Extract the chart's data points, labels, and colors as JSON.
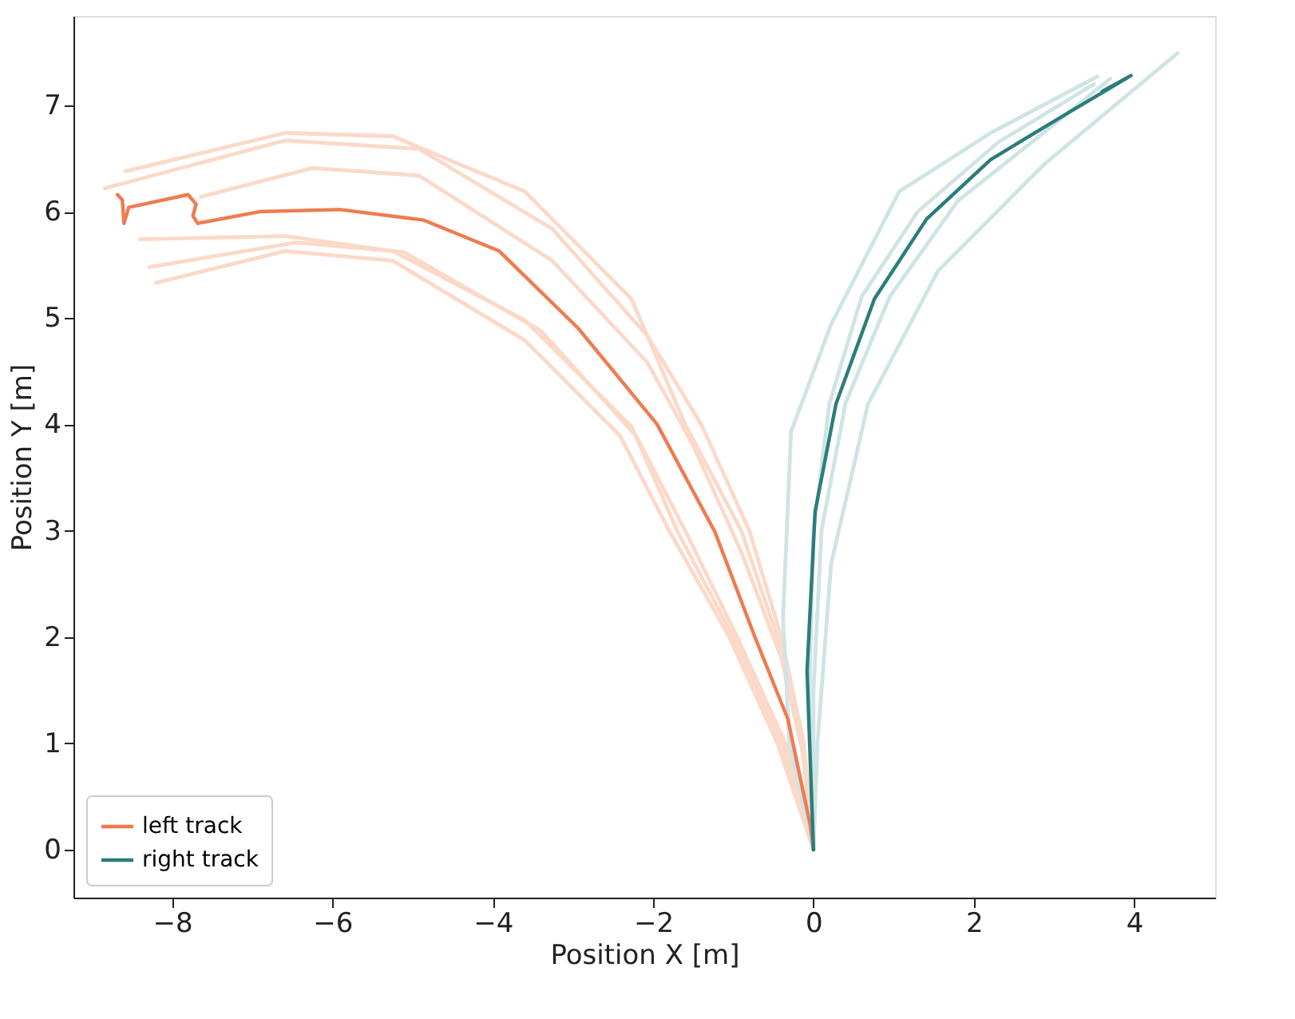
{
  "chart_data": {
    "type": "line",
    "xlabel": "Position X [m]",
    "ylabel": "Position Y [m]",
    "xlim": [
      -9.23,
      5.01
    ],
    "ylim": [
      -0.45,
      7.84
    ],
    "xticks": [
      -8,
      -6,
      -4,
      -2,
      0,
      2,
      4
    ],
    "yticks": [
      0,
      1,
      2,
      3,
      4,
      5,
      6,
      7
    ],
    "grid": false,
    "legend": "bottom left",
    "line_style": "solid",
    "series": [
      {
        "color": "#fbd9c9",
        "x": [
          0,
          -0.15,
          -0.45,
          -0.9,
          -1.6,
          -2.27,
          -3.6,
          -5.25,
          -6.59,
          -8.58
        ],
        "values": [
          0,
          1.0,
          2.0,
          3.0,
          4.0,
          5.18,
          6.19,
          6.71,
          6.74,
          6.38
        ]
      },
      {
        "color": "#fbd9c9",
        "x": [
          0,
          -0.12,
          -0.4,
          -0.8,
          -1.4,
          -2.07,
          -3.26,
          -4.92,
          -6.59,
          -8.84
        ],
        "values": [
          0,
          1.0,
          2.0,
          3.0,
          4.0,
          4.83,
          5.84,
          6.59,
          6.67,
          6.22
        ]
      },
      {
        "color": "#fbd9c9",
        "x": [
          0,
          -0.1,
          -0.4,
          -0.9,
          -1.5,
          -2.07,
          -3.26,
          -4.92,
          -6.25,
          -7.64
        ],
        "values": [
          0,
          0.8,
          1.8,
          2.8,
          3.8,
          4.58,
          5.54,
          6.34,
          6.41,
          6.14
        ]
      },
      {
        "color": "#fbd9c9",
        "x": [
          0,
          -0.4,
          -1.0,
          -1.7,
          -2.27,
          -3.6,
          -5.25,
          -6.59,
          -8.4
        ],
        "values": [
          0,
          1.0,
          2.0,
          3.0,
          3.98,
          4.98,
          5.63,
          5.77,
          5.74
        ]
      },
      {
        "color": "#fbd9c9",
        "x": [
          0,
          -0.45,
          -1.05,
          -1.8,
          -2.41,
          -3.6,
          -5.25,
          -6.59,
          -8.2
        ],
        "values": [
          0,
          1.0,
          2.0,
          3.0,
          3.89,
          4.79,
          5.54,
          5.63,
          5.33
        ]
      },
      {
        "color": "#fbd9c9",
        "x": [
          0,
          -0.35,
          -0.95,
          -1.6,
          -2.21,
          -3.4,
          -5.11,
          -6.45,
          -8.28
        ],
        "values": [
          0,
          1.0,
          2.0,
          3.0,
          3.89,
          4.88,
          5.62,
          5.71,
          5.48
        ]
      },
      {
        "color": "#cfe4e4",
        "x": [
          0,
          -0.3,
          -0.38,
          -0.28,
          0.22,
          1.07,
          2.21,
          3.54
        ],
        "values": [
          0,
          1.0,
          2.18,
          3.93,
          4.94,
          6.19,
          6.74,
          7.27
        ]
      },
      {
        "color": "#cfe4e4",
        "x": [
          0,
          0.05,
          0.22,
          0.68,
          1.55,
          2.87,
          4.54
        ],
        "values": [
          0,
          1.0,
          2.69,
          4.19,
          5.44,
          6.44,
          7.49
        ]
      },
      {
        "color": "#cfe4e4",
        "x": [
          0,
          0.0,
          0.1,
          0.4,
          0.95,
          1.8,
          2.8,
          3.7
        ],
        "values": [
          0,
          1.5,
          3.0,
          4.2,
          5.2,
          6.1,
          6.7,
          7.25
        ]
      },
      {
        "color": "#cfe4e4",
        "x": [
          0,
          -0.05,
          0.0,
          0.2,
          0.6,
          1.3,
          2.3,
          3.5
        ],
        "values": [
          0,
          1.5,
          3.0,
          4.2,
          5.2,
          6.0,
          6.65,
          7.2
        ]
      },
      {
        "name": "left track",
        "color": "#ef7b50",
        "x": [
          0,
          -0.04,
          -0.32,
          -0.72,
          -1.23,
          -1.95,
          -2.93,
          -3.92,
          -4.86,
          -5.91,
          -6.91,
          -7.68,
          -7.74,
          -7.7,
          -7.8,
          -8.54,
          -8.6,
          -8.62,
          -8.68
        ],
        "values": [
          0,
          0.23,
          1.23,
          1.98,
          2.99,
          4.0,
          4.9,
          5.63,
          5.92,
          6.02,
          6.0,
          5.89,
          5.96,
          6.07,
          6.16,
          6.04,
          5.89,
          6.11,
          6.16
        ]
      },
      {
        "name": "right track",
        "color": "#2b7d7b",
        "x": [
          0,
          -0.08,
          0.02,
          0.28,
          0.76,
          1.41,
          2.21,
          3.2,
          3.94,
          3.6,
          3.96
        ],
        "values": [
          0,
          1.68,
          3.18,
          4.19,
          5.18,
          5.93,
          6.49,
          6.94,
          7.27,
          7.13,
          7.28
        ]
      }
    ]
  }
}
